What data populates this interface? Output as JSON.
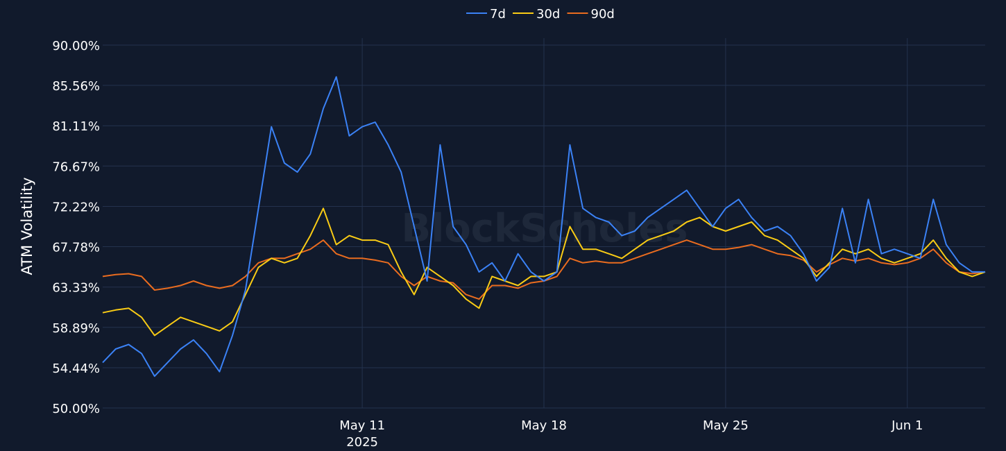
{
  "chart_data": {
    "type": "line",
    "ylabel": "ATM Volatility",
    "watermark": "BlockScholes",
    "ylim": [
      50,
      90
    ],
    "y_ticks": [
      "50.00%",
      "54.44%",
      "58.89%",
      "63.33%",
      "67.78%",
      "72.22%",
      "76.67%",
      "81.11%",
      "85.56%",
      "90.00%"
    ],
    "y_tick_values": [
      50,
      54.44,
      58.89,
      63.33,
      67.78,
      72.22,
      76.67,
      81.11,
      85.56,
      90
    ],
    "xlim": [
      "2025-05-01",
      "2025-06-04"
    ],
    "x_ticks": [
      {
        "date": "2025-05-11",
        "label": "May 11",
        "sublabel": "2025"
      },
      {
        "date": "2025-05-18",
        "label": "May 18",
        "sublabel": ""
      },
      {
        "date": "2025-05-25",
        "label": "May 25",
        "sublabel": ""
      },
      {
        "date": "2025-06-01",
        "label": "Jun 1",
        "sublabel": ""
      }
    ],
    "legend_position": "top-center",
    "grid": true,
    "x": [
      "2025-05-01",
      "2025-05-01 12:00",
      "2025-05-02",
      "2025-05-02 12:00",
      "2025-05-03",
      "2025-05-03 12:00",
      "2025-05-04",
      "2025-05-04 12:00",
      "2025-05-05",
      "2025-05-05 12:00",
      "2025-05-06",
      "2025-05-06 12:00",
      "2025-05-07",
      "2025-05-07 12:00",
      "2025-05-08",
      "2025-05-08 12:00",
      "2025-05-09",
      "2025-05-09 12:00",
      "2025-05-10",
      "2025-05-10 12:00",
      "2025-05-11",
      "2025-05-11 12:00",
      "2025-05-12",
      "2025-05-12 12:00",
      "2025-05-13",
      "2025-05-13 12:00",
      "2025-05-14",
      "2025-05-14 12:00",
      "2025-05-15",
      "2025-05-15 12:00",
      "2025-05-16",
      "2025-05-16 12:00",
      "2025-05-17",
      "2025-05-17 12:00",
      "2025-05-18",
      "2025-05-18 12:00",
      "2025-05-19",
      "2025-05-19 12:00",
      "2025-05-20",
      "2025-05-20 12:00",
      "2025-05-21",
      "2025-05-21 12:00",
      "2025-05-22",
      "2025-05-22 12:00",
      "2025-05-23",
      "2025-05-23 12:00",
      "2025-05-24",
      "2025-05-24 12:00",
      "2025-05-25",
      "2025-05-25 12:00",
      "2025-05-26",
      "2025-05-26 12:00",
      "2025-05-27",
      "2025-05-27 12:00",
      "2025-05-28",
      "2025-05-28 12:00",
      "2025-05-29",
      "2025-05-29 12:00",
      "2025-05-30",
      "2025-05-30 12:00",
      "2025-05-31",
      "2025-05-31 12:00",
      "2025-06-01",
      "2025-06-01 12:00",
      "2025-06-02",
      "2025-06-02 12:00",
      "2025-06-03",
      "2025-06-03 12:00",
      "2025-06-04"
    ],
    "series": [
      {
        "name": "7d",
        "color": "#3b82f6",
        "values": [
          55.0,
          56.5,
          57.0,
          56.0,
          53.5,
          55.0,
          56.5,
          57.5,
          56.0,
          54.0,
          58.0,
          63.0,
          72.0,
          81.0,
          77.0,
          76.0,
          78.0,
          83.0,
          86.5,
          80.0,
          81.0,
          81.5,
          79.0,
          76.0,
          70.0,
          64.0,
          79.0,
          70.0,
          68.0,
          65.0,
          66.0,
          64.0,
          67.0,
          65.0,
          64.0,
          65.0,
          79.0,
          72.0,
          71.0,
          70.5,
          69.0,
          69.5,
          71.0,
          72.0,
          73.0,
          74.0,
          72.0,
          70.0,
          72.0,
          73.0,
          71.0,
          69.5,
          70.0,
          69.0,
          67.0,
          64.0,
          65.5,
          72.0,
          66.0,
          73.0,
          67.0,
          67.5,
          67.0,
          66.5,
          73.0,
          68.0,
          66.0,
          65.0,
          65.0
        ]
      },
      {
        "name": "30d",
        "color": "#facc15",
        "values": [
          60.5,
          60.8,
          61.0,
          60.0,
          58.0,
          59.0,
          60.0,
          59.5,
          59.0,
          58.5,
          59.5,
          62.5,
          65.5,
          66.5,
          66.0,
          66.5,
          69.0,
          72.0,
          68.0,
          69.0,
          68.5,
          68.5,
          68.0,
          65.0,
          62.5,
          65.5,
          64.5,
          63.5,
          62.0,
          61.0,
          64.5,
          64.0,
          63.5,
          64.5,
          64.5,
          65.0,
          70.0,
          67.5,
          67.5,
          67.0,
          66.5,
          67.5,
          68.5,
          69.0,
          69.5,
          70.5,
          71.0,
          70.0,
          69.5,
          70.0,
          70.5,
          69.0,
          68.5,
          67.5,
          66.5,
          64.5,
          66.0,
          67.5,
          67.0,
          67.5,
          66.5,
          66.0,
          66.5,
          67.0,
          68.5,
          66.5,
          65.0,
          64.5,
          65.0
        ]
      },
      {
        "name": "90d",
        "color": "#ea6c1f",
        "values": [
          64.5,
          64.7,
          64.8,
          64.5,
          63.0,
          63.2,
          63.5,
          64.0,
          63.5,
          63.2,
          63.5,
          64.5,
          66.0,
          66.5,
          66.5,
          67.0,
          67.5,
          68.5,
          67.0,
          66.5,
          66.5,
          66.3,
          66.0,
          64.5,
          63.5,
          64.5,
          64.0,
          63.8,
          62.5,
          62.0,
          63.5,
          63.5,
          63.2,
          63.8,
          64.0,
          64.5,
          66.5,
          66.0,
          66.2,
          66.0,
          66.0,
          66.5,
          67.0,
          67.5,
          68.0,
          68.5,
          68.0,
          67.5,
          67.5,
          67.7,
          68.0,
          67.5,
          67.0,
          66.8,
          66.3,
          65.0,
          65.8,
          66.5,
          66.2,
          66.5,
          66.0,
          65.8,
          66.0,
          66.5,
          67.5,
          66.0,
          65.0,
          64.8,
          65.0
        ]
      }
    ]
  }
}
